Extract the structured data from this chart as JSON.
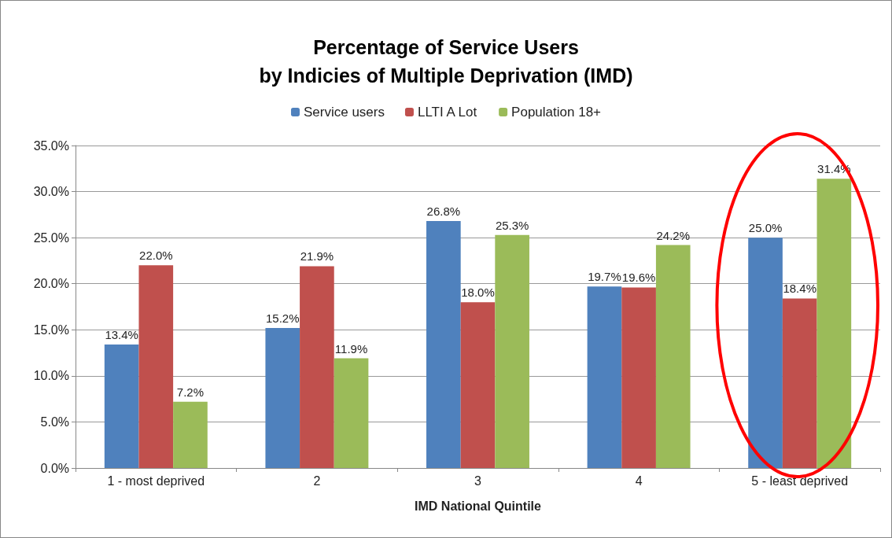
{
  "chart_data": {
    "type": "bar",
    "title": "Percentage of Service Users\nby Indicies of Multiple Deprivation (IMD)",
    "xlabel": "IMD National Quintile",
    "categories": [
      "1 - most deprived",
      "2",
      "3",
      "4",
      "5 - least deprived"
    ],
    "series": [
      {
        "name": "Service users",
        "color": "#4f81bd",
        "values": [
          13.4,
          15.2,
          26.8,
          19.7,
          25.0
        ],
        "value_labels": [
          "13.4%",
          "15.2%",
          "26.8%",
          "19.7%",
          "25.0%"
        ]
      },
      {
        "name": "LLTI A Lot",
        "color": "#c0504d",
        "values": [
          22.0,
          21.9,
          18.0,
          19.6,
          18.4
        ],
        "value_labels": [
          "22.0%",
          "21.9%",
          "18.0%",
          "19.6%",
          "18.4%"
        ]
      },
      {
        "name": "Population 18+",
        "color": "#9bbb59",
        "values": [
          7.2,
          11.9,
          25.3,
          24.2,
          31.4
        ],
        "value_labels": [
          "7.2%",
          "11.9%",
          "25.3%",
          "24.2%",
          "31.4%"
        ]
      }
    ],
    "ylim": [
      0,
      35
    ],
    "yticks": [
      {
        "value": 0,
        "label": "0.0%"
      },
      {
        "value": 5,
        "label": "5.0%"
      },
      {
        "value": 10,
        "label": "10.0%"
      },
      {
        "value": 15,
        "label": "15.0%"
      },
      {
        "value": 20,
        "label": "20.0%"
      },
      {
        "value": 25,
        "label": "25.0%"
      },
      {
        "value": 30,
        "label": "30.0%"
      },
      {
        "value": 35,
        "label": "35.0%"
      }
    ],
    "grid": "y",
    "legend": "top"
  }
}
